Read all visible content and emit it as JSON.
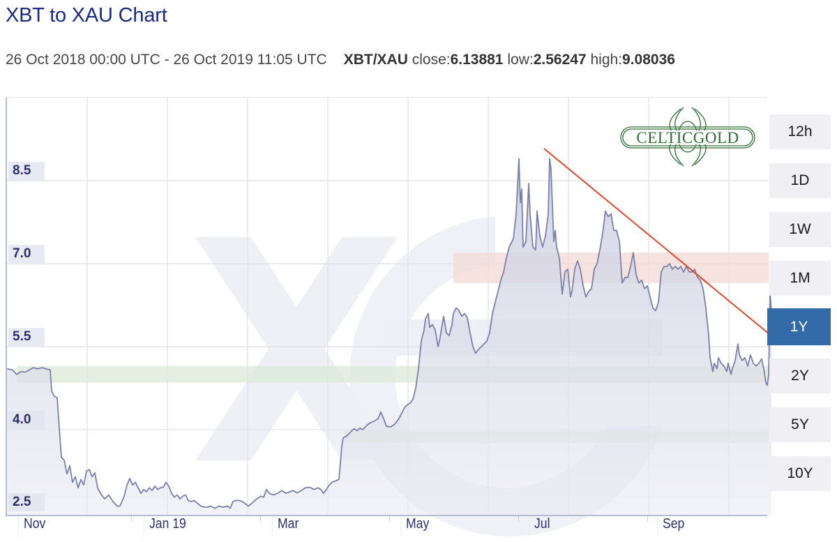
{
  "header": {
    "title": "XBT to XAU Chart",
    "date_range": "26 Oct 2018 00:00 UTC - 26 Oct 2019 11:05 UTC",
    "pair": "XBT/XAU",
    "close_label": "close:",
    "close_value": "6.13881",
    "low_label": "low:",
    "low_value": "2.56247",
    "high_label": "high:",
    "high_value": "9.08036"
  },
  "logo": {
    "text": "CELTICGOLD",
    "color": "#2e6b35"
  },
  "watermark": {
    "text": "xe",
    "color": "#eef0f6"
  },
  "range_buttons": [
    {
      "label": "12h",
      "active": false
    },
    {
      "label": "1D",
      "active": false
    },
    {
      "label": "1W",
      "active": false
    },
    {
      "label": "1M",
      "active": false
    },
    {
      "label": "1Y",
      "active": true
    },
    {
      "label": "2Y",
      "active": false
    },
    {
      "label": "5Y",
      "active": false
    },
    {
      "label": "10Y",
      "active": false
    }
  ],
  "colors": {
    "title": "#1b2a80",
    "line": "#7a80a8",
    "fill": "#d8dbe8",
    "trendline": "#e0452a",
    "resistance_band": "#f3d9d6",
    "support_band": "#dbe9d8",
    "active_button": "#336aa8",
    "axis_label": "#2a3068"
  },
  "chart_data": {
    "type": "area",
    "title": "XBT to XAU Chart",
    "xlabel": "",
    "ylabel": "",
    "ylim": [
      2.45,
      9.5
    ],
    "yticks": [
      2.5,
      4.0,
      5.5,
      7.0,
      8.5
    ],
    "ytick_labels": [
      "2.5",
      "4.0",
      "5.5",
      "7.0",
      "8.5"
    ],
    "xtick_labels": [
      "Nov",
      "Jan 19",
      "Mar",
      "May",
      "Jul",
      "Sep"
    ],
    "grid": true,
    "legend": null,
    "series": [
      {
        "name": "XBT/XAU",
        "points": [
          [
            0,
            5.1
          ],
          [
            8,
            5.08
          ],
          [
            14,
            5.0
          ],
          [
            20,
            5.05
          ],
          [
            26,
            5.04
          ],
          [
            32,
            5.08
          ],
          [
            38,
            5.12
          ],
          [
            44,
            5.1
          ],
          [
            50,
            5.12
          ],
          [
            56,
            5.1
          ],
          [
            62,
            5.08
          ],
          [
            64,
            4.7
          ],
          [
            68,
            4.6
          ],
          [
            72,
            4.58
          ],
          [
            74,
            4.2
          ],
          [
            78,
            3.5
          ],
          [
            82,
            3.45
          ],
          [
            86,
            3.2
          ],
          [
            90,
            3.35
          ],
          [
            94,
            3.05
          ],
          [
            98,
            3.15
          ],
          [
            102,
            2.95
          ],
          [
            106,
            3.1
          ],
          [
            110,
            3.0
          ],
          [
            114,
            3.25
          ],
          [
            118,
            3.28
          ],
          [
            122,
            3.15
          ],
          [
            126,
            3.22
          ],
          [
            130,
            2.95
          ],
          [
            134,
            2.85
          ],
          [
            140,
            2.75
          ],
          [
            146,
            2.82
          ],
          [
            152,
            2.7
          ],
          [
            158,
            2.62
          ],
          [
            162,
            2.62
          ],
          [
            168,
            2.8
          ],
          [
            172,
            3.0
          ],
          [
            176,
            3.12
          ],
          [
            180,
            3.0
          ],
          [
            184,
            3.05
          ],
          [
            188,
            2.95
          ],
          [
            192,
            2.85
          ],
          [
            196,
            2.92
          ],
          [
            200,
            2.88
          ],
          [
            204,
            2.95
          ],
          [
            208,
            2.9
          ],
          [
            212,
            2.98
          ],
          [
            216,
            2.92
          ],
          [
            220,
            2.95
          ],
          [
            224,
            2.96
          ],
          [
            228,
            3.05
          ],
          [
            232,
            2.98
          ],
          [
            236,
            2.85
          ],
          [
            240,
            2.78
          ],
          [
            244,
            2.82
          ],
          [
            248,
            2.75
          ],
          [
            252,
            2.8
          ],
          [
            256,
            2.82
          ],
          [
            260,
            2.72
          ],
          [
            264,
            2.7
          ],
          [
            268,
            2.72
          ],
          [
            272,
            2.68
          ],
          [
            278,
            2.62
          ],
          [
            284,
            2.6
          ],
          [
            288,
            2.6
          ],
          [
            292,
            2.62
          ],
          [
            298,
            2.58
          ],
          [
            304,
            2.62
          ],
          [
            310,
            2.6
          ],
          [
            316,
            2.62
          ],
          [
            320,
            2.58
          ],
          [
            324,
            2.7
          ],
          [
            328,
            2.72
          ],
          [
            334,
            2.72
          ],
          [
            340,
            2.68
          ],
          [
            346,
            2.62
          ],
          [
            352,
            2.68
          ],
          [
            358,
            2.75
          ],
          [
            364,
            2.8
          ],
          [
            368,
            2.78
          ],
          [
            372,
            2.92
          ],
          [
            376,
            2.85
          ],
          [
            382,
            2.82
          ],
          [
            388,
            2.85
          ],
          [
            394,
            2.9
          ],
          [
            400,
            2.85
          ],
          [
            406,
            2.88
          ],
          [
            410,
            2.9
          ],
          [
            416,
            2.86
          ],
          [
            422,
            2.9
          ],
          [
            428,
            2.95
          ],
          [
            434,
            2.96
          ],
          [
            440,
            2.92
          ],
          [
            446,
            2.95
          ],
          [
            450,
            2.92
          ],
          [
            454,
            2.85
          ],
          [
            458,
            2.92
          ],
          [
            462,
            3.0
          ],
          [
            466,
            3.05
          ],
          [
            472,
            3.08
          ],
          [
            476,
            3.1
          ],
          [
            478,
            3.4
          ],
          [
            480,
            3.7
          ],
          [
            482,
            3.85
          ],
          [
            486,
            3.88
          ],
          [
            490,
            3.92
          ],
          [
            494,
            3.98
          ],
          [
            498,
            4.02
          ],
          [
            502,
            3.98
          ],
          [
            506,
            4.03
          ],
          [
            510,
            4.0
          ],
          [
            516,
            4.08
          ],
          [
            520,
            4.12
          ],
          [
            526,
            4.15
          ],
          [
            532,
            4.2
          ],
          [
            536,
            4.32
          ],
          [
            540,
            4.2
          ],
          [
            544,
            4.06
          ],
          [
            550,
            4.05
          ],
          [
            556,
            4.1
          ],
          [
            562,
            4.2
          ],
          [
            566,
            4.3
          ],
          [
            570,
            4.4
          ],
          [
            574,
            4.45
          ],
          [
            578,
            4.48
          ],
          [
            582,
            4.55
          ],
          [
            586,
            4.75
          ],
          [
            590,
            5.1
          ],
          [
            594,
            5.6
          ],
          [
            598,
            5.8
          ],
          [
            600,
            6.0
          ],
          [
            604,
            6.1
          ],
          [
            606,
            5.85
          ],
          [
            610,
            5.9
          ],
          [
            614,
            5.8
          ],
          [
            618,
            5.5
          ],
          [
            620,
            5.6
          ],
          [
            624,
            5.9
          ],
          [
            626,
            6.05
          ],
          [
            630,
            5.75
          ],
          [
            634,
            5.7
          ],
          [
            638,
            5.9
          ],
          [
            640,
            6.1
          ],
          [
            644,
            6.2
          ],
          [
            648,
            6.15
          ],
          [
            652,
            6.05
          ],
          [
            656,
            6.1
          ],
          [
            660,
            6.02
          ],
          [
            664,
            5.75
          ],
          [
            668,
            5.5
          ],
          [
            672,
            5.38
          ],
          [
            676,
            5.45
          ],
          [
            680,
            5.5
          ],
          [
            684,
            5.55
          ],
          [
            688,
            5.6
          ],
          [
            692,
            5.75
          ],
          [
            696,
            6.1
          ],
          [
            700,
            6.3
          ],
          [
            704,
            6.5
          ],
          [
            708,
            6.7
          ],
          [
            712,
            6.85
          ],
          [
            716,
            7.1
          ],
          [
            720,
            7.3
          ],
          [
            726,
            7.45
          ],
          [
            730,
            7.9
          ],
          [
            734,
            8.9
          ],
          [
            736,
            8.1
          ],
          [
            738,
            8.35
          ],
          [
            740,
            7.3
          ],
          [
            744,
            7.4
          ],
          [
            748,
            8.45
          ],
          [
            750,
            7.9
          ],
          [
            754,
            7.3
          ],
          [
            758,
            7.25
          ],
          [
            760,
            7.95
          ],
          [
            764,
            7.5
          ],
          [
            768,
            7.3
          ],
          [
            772,
            7.5
          ],
          [
            776,
            7.9
          ],
          [
            778,
            8.9
          ],
          [
            780,
            8.7
          ],
          [
            784,
            7.4
          ],
          [
            786,
            7.6
          ],
          [
            788,
            7.3
          ],
          [
            792,
            7.1
          ],
          [
            796,
            6.45
          ],
          [
            800,
            6.85
          ],
          [
            804,
            6.9
          ],
          [
            808,
            6.4
          ],
          [
            810,
            6.5
          ],
          [
            814,
            6.9
          ],
          [
            818,
            7.05
          ],
          [
            822,
            6.9
          ],
          [
            826,
            6.6
          ],
          [
            830,
            6.4
          ],
          [
            834,
            6.5
          ],
          [
            838,
            6.55
          ],
          [
            842,
            6.9
          ],
          [
            846,
            7.0
          ],
          [
            850,
            7.25
          ],
          [
            854,
            7.55
          ],
          [
            858,
            7.95
          ],
          [
            862,
            7.85
          ],
          [
            866,
            7.9
          ],
          [
            870,
            7.6
          ],
          [
            874,
            7.6
          ],
          [
            878,
            7.4
          ],
          [
            882,
            6.65
          ],
          [
            886,
            6.75
          ],
          [
            890,
            6.75
          ],
          [
            894,
            6.95
          ],
          [
            898,
            7.2
          ],
          [
            902,
            6.8
          ],
          [
            906,
            6.65
          ],
          [
            910,
            6.7
          ],
          [
            914,
            6.55
          ],
          [
            918,
            6.6
          ],
          [
            922,
            6.4
          ],
          [
            926,
            6.2
          ],
          [
            930,
            6.15
          ],
          [
            934,
            6.3
          ],
          [
            938,
            6.85
          ],
          [
            942,
            6.95
          ],
          [
            946,
            6.95
          ],
          [
            950,
            7.0
          ],
          [
            954,
            6.9
          ],
          [
            958,
            6.95
          ],
          [
            962,
            6.9
          ],
          [
            966,
            6.95
          ],
          [
            970,
            6.85
          ],
          [
            974,
            6.95
          ],
          [
            978,
            6.85
          ],
          [
            982,
            6.85
          ],
          [
            986,
            6.9
          ],
          [
            990,
            6.75
          ],
          [
            994,
            6.7
          ],
          [
            998,
            6.55
          ],
          [
            1002,
            6.2
          ],
          [
            1006,
            5.7
          ],
          [
            1008,
            5.3
          ],
          [
            1012,
            5.05
          ],
          [
            1014,
            5.2
          ],
          [
            1018,
            5.1
          ],
          [
            1020,
            5.3
          ],
          [
            1024,
            5.2
          ],
          [
            1028,
            5.15
          ],
          [
            1032,
            5.05
          ],
          [
            1034,
            5.2
          ],
          [
            1038,
            5.0
          ],
          [
            1040,
            5.1
          ],
          [
            1044,
            5.25
          ],
          [
            1048,
            5.55
          ],
          [
            1050,
            5.35
          ],
          [
            1054,
            5.25
          ],
          [
            1058,
            5.3
          ],
          [
            1062,
            5.15
          ],
          [
            1066,
            5.35
          ],
          [
            1070,
            5.2
          ],
          [
            1074,
            5.15
          ],
          [
            1078,
            5.2
          ],
          [
            1082,
            5.28
          ],
          [
            1085,
            5.1
          ],
          [
            1088,
            4.85
          ],
          [
            1090,
            4.8
          ],
          [
            1092,
            5.0
          ],
          [
            1093,
            5.7
          ],
          [
            1094,
            6.5
          ],
          [
            1095,
            6.3
          ],
          [
            1096,
            6.14
          ]
        ]
      }
    ],
    "annotations": [
      {
        "type": "trendline",
        "from": [
          770,
          9.08
        ],
        "to": [
          1110,
          5.55
        ],
        "color": "#e0452a"
      },
      {
        "type": "band",
        "label": "resistance",
        "x_from": 640,
        "y_from": 6.65,
        "y_to": 7.2,
        "color": "#f3d9d6"
      },
      {
        "type": "band",
        "label": "support-upper",
        "x_from": 14,
        "y_from": 4.85,
        "y_to": 5.15,
        "color": "#dbe9d8"
      },
      {
        "type": "band",
        "label": "support-lower",
        "x_from": 484,
        "y_from": 3.76,
        "y_to": 3.98,
        "color": "#dbe9d8"
      }
    ]
  }
}
